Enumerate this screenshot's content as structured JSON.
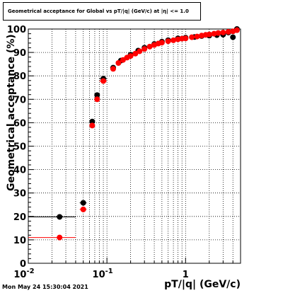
{
  "title": "Geometrical acceptance for Global vs pT/|q| (GeV/c) at |η| <= 1.0",
  "timestamp": "Mon May 24 15:30:04 2021",
  "chart_data": {
    "type": "scatter",
    "title": "Geometrical acceptance for Global vs pT/|q| (GeV/c) at |η| <= 1.0",
    "xlabel": "pT/|q| (GeV/c)",
    "ylabel": "Geometrical acceptance (%)",
    "xscale": "log",
    "xlim": [
      0.01,
      5
    ],
    "ylim": [
      0,
      100
    ],
    "xticks": [
      0.01,
      0.1,
      1
    ],
    "xticklabels": [
      "10^-2",
      "10^-1",
      "1"
    ],
    "yticks": [
      0,
      10,
      20,
      30,
      40,
      50,
      60,
      70,
      80,
      90,
      100
    ],
    "yticklabels": [
      "0",
      "10",
      "20",
      "30",
      "40",
      "50",
      "60",
      "70",
      "80",
      "90",
      "100"
    ],
    "grid": true,
    "legend": "none",
    "series": [
      {
        "color": "#000000",
        "error_bars": "x",
        "points": [
          {
            "x": 0.025,
            "y": 19.8,
            "xlo": 0.01,
            "xhi": 0.04
          },
          {
            "x": 0.05,
            "y": 25.8,
            "xlo": 0.045,
            "xhi": 0.055
          },
          {
            "x": 0.065,
            "y": 60.5,
            "xlo": 0.06,
            "xhi": 0.07
          },
          {
            "x": 0.075,
            "y": 71.8,
            "xlo": 0.07,
            "xhi": 0.08
          },
          {
            "x": 0.09,
            "y": 78.8,
            "xlo": 0.08,
            "xhi": 0.1
          },
          {
            "x": 0.12,
            "y": 83.5,
            "xlo": 0.11,
            "xhi": 0.13
          },
          {
            "x": 0.15,
            "y": 86.5
          },
          {
            "x": 0.2,
            "y": 89.0
          },
          {
            "x": 0.25,
            "y": 90.8
          },
          {
            "x": 0.3,
            "y": 92.0
          },
          {
            "x": 0.4,
            "y": 93.6
          },
          {
            "x": 0.5,
            "y": 94.6
          },
          {
            "x": 0.6,
            "y": 95.2
          },
          {
            "x": 0.8,
            "y": 96.0
          },
          {
            "x": 1.0,
            "y": 96.3
          },
          {
            "x": 1.3,
            "y": 96.6
          },
          {
            "x": 1.6,
            "y": 97.0
          },
          {
            "x": 2.0,
            "y": 97.2
          },
          {
            "x": 2.5,
            "y": 97.4
          },
          {
            "x": 3.0,
            "y": 97.6
          },
          {
            "x": 3.5,
            "y": 98.5
          },
          {
            "x": 4.0,
            "y": 96.5
          },
          {
            "x": 4.5,
            "y": 100.0
          }
        ]
      },
      {
        "color": "#ff0000",
        "error_bars": "x",
        "points": [
          {
            "x": 0.025,
            "y": 11.0,
            "xlo": 0.01,
            "xhi": 0.04
          },
          {
            "x": 0.05,
            "y": 23.0,
            "xlo": 0.045,
            "xhi": 0.055
          },
          {
            "x": 0.065,
            "y": 58.8,
            "xlo": 0.06,
            "xhi": 0.07
          },
          {
            "x": 0.075,
            "y": 70.0,
            "xlo": 0.07,
            "xhi": 0.08
          },
          {
            "x": 0.09,
            "y": 77.8,
            "xlo": 0.08,
            "xhi": 0.1
          },
          {
            "x": 0.12,
            "y": 83.0,
            "xlo": 0.11,
            "xhi": 0.13
          },
          {
            "x": 0.14,
            "y": 85.5
          },
          {
            "x": 0.16,
            "y": 86.8
          },
          {
            "x": 0.18,
            "y": 87.8
          },
          {
            "x": 0.2,
            "y": 88.5
          },
          {
            "x": 0.23,
            "y": 89.5
          },
          {
            "x": 0.26,
            "y": 90.5
          },
          {
            "x": 0.3,
            "y": 91.5
          },
          {
            "x": 0.35,
            "y": 92.5
          },
          {
            "x": 0.4,
            "y": 93.2
          },
          {
            "x": 0.45,
            "y": 93.8
          },
          {
            "x": 0.5,
            "y": 94.2
          },
          {
            "x": 0.6,
            "y": 94.8
          },
          {
            "x": 0.7,
            "y": 95.2
          },
          {
            "x": 0.8,
            "y": 95.6
          },
          {
            "x": 0.9,
            "y": 95.9
          },
          {
            "x": 1.0,
            "y": 96.0
          },
          {
            "x": 1.2,
            "y": 96.5
          },
          {
            "x": 1.4,
            "y": 96.8
          },
          {
            "x": 1.6,
            "y": 97.2
          },
          {
            "x": 1.8,
            "y": 97.5
          },
          {
            "x": 2.0,
            "y": 97.7
          },
          {
            "x": 2.3,
            "y": 98.0
          },
          {
            "x": 2.6,
            "y": 98.3
          },
          {
            "x": 3.0,
            "y": 98.5
          },
          {
            "x": 3.5,
            "y": 98.8
          },
          {
            "x": 4.0,
            "y": 99.0
          },
          {
            "x": 4.5,
            "y": 99.5
          }
        ]
      }
    ]
  }
}
